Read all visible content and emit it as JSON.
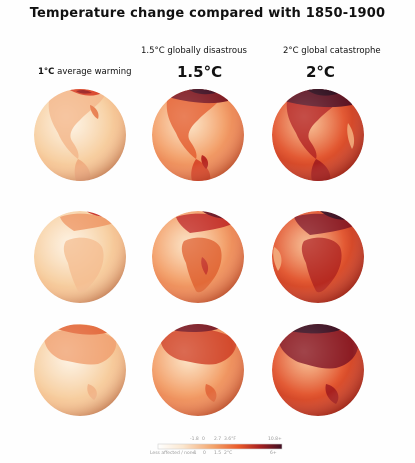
{
  "title": "Temperature change compared with 1850-1900",
  "columns": [
    {
      "prefix": "1°C",
      "label": " average warming",
      "big": ""
    },
    {
      "prefix": "",
      "label": "1.5°C globally disastrous",
      "big": "1.5°C"
    },
    {
      "prefix": "",
      "label": "2°C global catastrophe",
      "big": "2°C"
    }
  ],
  "rows": [
    "americas",
    "europe-africa",
    "asia-pacific"
  ],
  "legend": {
    "ticks": [
      "-1.8",
      "0",
      "2.7",
      "3.6°F",
      "10.8+"
    ],
    "subticks": [
      "-1",
      "0",
      "1.5",
      "2°C",
      "6+"
    ],
    "note": "Less affected / none"
  },
  "colors": {
    "scale_low": "#fbe7cf",
    "scale_mid": "#ea5a2a",
    "scale_high": "#3f0f22"
  }
}
